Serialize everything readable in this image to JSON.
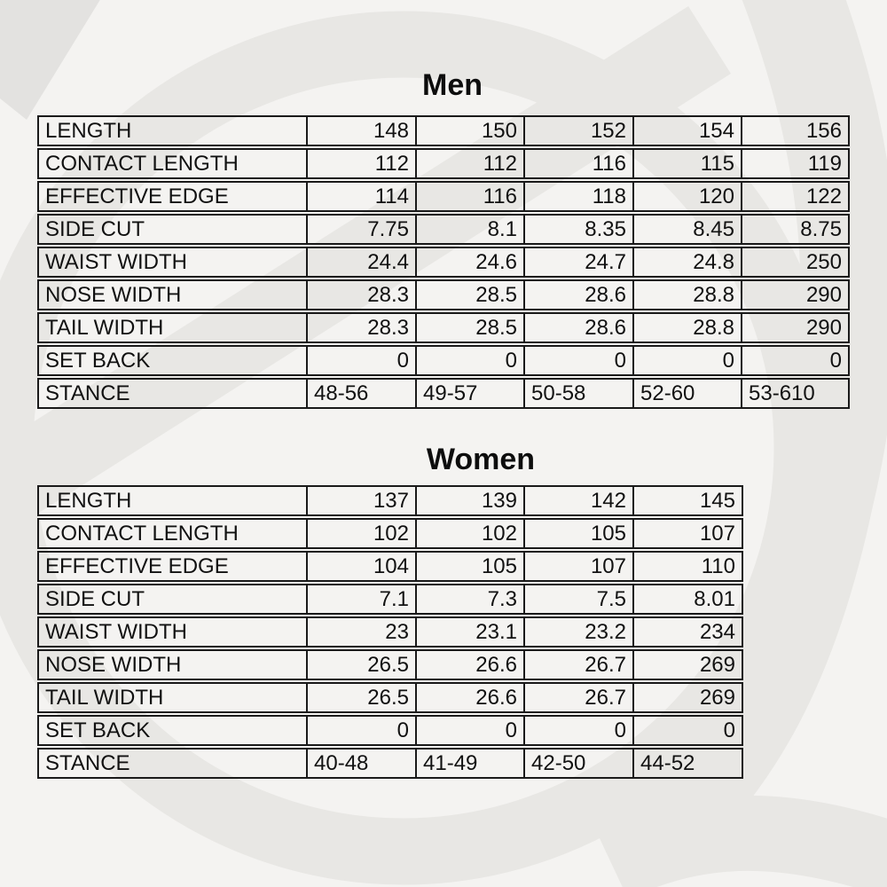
{
  "page": {
    "background_color": "#f4f3f1",
    "watermark_color": "#e8e7e4",
    "watermark_corner_color": "#e3e2e0",
    "border_color": "#1a1a1a",
    "text_color": "#111111"
  },
  "men": {
    "title": "Men",
    "rows": [
      {
        "label": "LENGTH",
        "values": [
          "148",
          "150",
          "152",
          "154",
          "156"
        ]
      },
      {
        "label": "CONTACT LENGTH",
        "values": [
          "112",
          "112",
          "116",
          "115",
          "119"
        ]
      },
      {
        "label": "EFFECTIVE EDGE",
        "values": [
          "114",
          "116",
          "118",
          "120",
          "122"
        ]
      },
      {
        "label": "SIDE CUT",
        "values": [
          "7.75",
          "8.1",
          "8.35",
          "8.45",
          "8.75"
        ]
      },
      {
        "label": "WAIST WIDTH",
        "values": [
          "24.4",
          "24.6",
          "24.7",
          "24.8",
          "250"
        ]
      },
      {
        "label": "NOSE WIDTH",
        "values": [
          "28.3",
          "28.5",
          "28.6",
          "28.8",
          "290"
        ]
      },
      {
        "label": "TAIL WIDTH",
        "values": [
          "28.3",
          "28.5",
          "28.6",
          "28.8",
          "290"
        ]
      },
      {
        "label": "SET BACK",
        "values": [
          "0",
          "0",
          "0",
          "0",
          "0"
        ]
      },
      {
        "label": "STANCE",
        "values": [
          "48-56",
          "49-57",
          "50-58",
          "52-60",
          "53-610"
        ],
        "values_align": "left"
      }
    ]
  },
  "women": {
    "title": "Women",
    "rows": [
      {
        "label": "LENGTH",
        "values": [
          "137",
          "139",
          "142",
          "145"
        ]
      },
      {
        "label": "CONTACT LENGTH",
        "values": [
          "102",
          "102",
          "105",
          "107"
        ]
      },
      {
        "label": "EFFECTIVE EDGE",
        "values": [
          "104",
          "105",
          "107",
          "110"
        ]
      },
      {
        "label": "SIDE CUT",
        "values": [
          "7.1",
          "7.3",
          "7.5",
          "8.01"
        ]
      },
      {
        "label": "WAIST WIDTH",
        "values": [
          "23",
          "23.1",
          "23.2",
          "234"
        ]
      },
      {
        "label": "NOSE WIDTH",
        "values": [
          "26.5",
          "26.6",
          "26.7",
          "269"
        ]
      },
      {
        "label": "TAIL WIDTH",
        "values": [
          "26.5",
          "26.6",
          "26.7",
          "269"
        ]
      },
      {
        "label": "SET BACK",
        "values": [
          "0",
          "0",
          "0",
          "0"
        ]
      },
      {
        "label": "STANCE",
        "values": [
          "40-48",
          "41-49",
          "42-50",
          "44-52"
        ],
        "values_align": "left"
      }
    ]
  },
  "chart_data": [
    {
      "type": "table",
      "title": "Men",
      "row_headers": [
        "LENGTH",
        "CONTACT LENGTH",
        "EFFECTIVE EDGE",
        "SIDE CUT",
        "WAIST WIDTH",
        "NOSE WIDTH",
        "TAIL WIDTH",
        "SET BACK",
        "STANCE"
      ],
      "rows": [
        [
          "148",
          "150",
          "152",
          "154",
          "156"
        ],
        [
          "112",
          "112",
          "116",
          "115",
          "119"
        ],
        [
          "114",
          "116",
          "118",
          "120",
          "122"
        ],
        [
          "7.75",
          "8.1",
          "8.35",
          "8.45",
          "8.75"
        ],
        [
          "24.4",
          "24.6",
          "24.7",
          "24.8",
          "250"
        ],
        [
          "28.3",
          "28.5",
          "28.6",
          "28.8",
          "290"
        ],
        [
          "28.3",
          "28.5",
          "28.6",
          "28.8",
          "290"
        ],
        [
          "0",
          "0",
          "0",
          "0",
          "0"
        ],
        [
          "48-56",
          "49-57",
          "50-58",
          "52-60",
          "53-610"
        ]
      ]
    },
    {
      "type": "table",
      "title": "Women",
      "row_headers": [
        "LENGTH",
        "CONTACT LENGTH",
        "EFFECTIVE EDGE",
        "SIDE CUT",
        "WAIST WIDTH",
        "NOSE WIDTH",
        "TAIL WIDTH",
        "SET BACK",
        "STANCE"
      ],
      "rows": [
        [
          "137",
          "139",
          "142",
          "145"
        ],
        [
          "102",
          "102",
          "105",
          "107"
        ],
        [
          "104",
          "105",
          "107",
          "110"
        ],
        [
          "7.1",
          "7.3",
          "7.5",
          "8.01"
        ],
        [
          "23",
          "23.1",
          "23.2",
          "234"
        ],
        [
          "26.5",
          "26.6",
          "26.7",
          "269"
        ],
        [
          "26.5",
          "26.6",
          "26.7",
          "269"
        ],
        [
          "0",
          "0",
          "0",
          "0"
        ],
        [
          "40-48",
          "41-49",
          "42-50",
          "44-52"
        ]
      ]
    }
  ]
}
